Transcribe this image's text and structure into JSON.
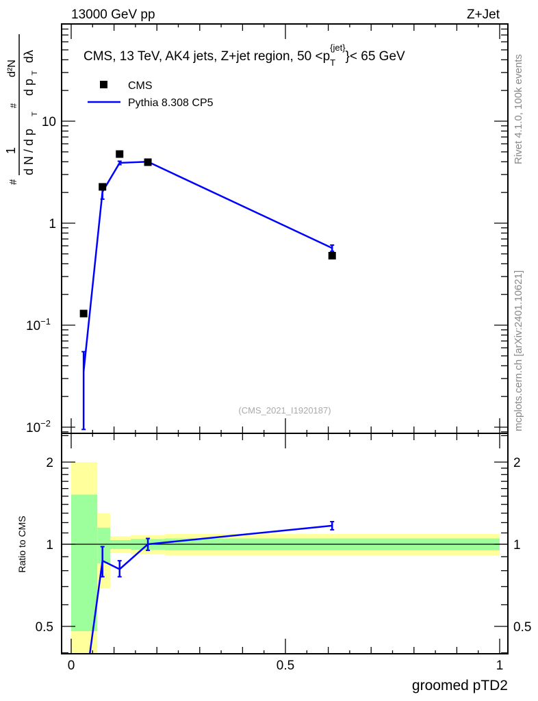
{
  "header": {
    "left": "13000 GeV pp",
    "right": "Z+Jet"
  },
  "side": {
    "rivet": "Rivet 4.1.0,  100k events",
    "mcplots": "mcplots.cern.ch [arXiv:2401.10621]"
  },
  "colors": {
    "data": "#000000",
    "mc": "#0000ff",
    "band_inner": "#9cff9c",
    "band_outer": "#ffff9c"
  },
  "chart_data": [
    {
      "type": "scatter",
      "title": "CMS, 13 TeV, AK4 jets, Z+jet region, 50 <p_T^{jet}< 65 GeV",
      "title_main": "CMS, 13 TeV, AK4 jets, Z+jet region, 50 <p",
      "title_sub": "T",
      "title_sup": "{jet}",
      "title_end": "}< 65 GeV",
      "analysis_id": "(CMS_2021_I1920187)",
      "ylabel": "1/N dN/dλ",
      "ylabel_parts": {
        "num1": "1",
        "den1": "d N / d p",
        "num2": "d²N",
        "den2": "d p",
        "sub": "T",
        "lambda": "dλ",
        "hash": "#"
      },
      "yscale": "log",
      "ylim": [
        0.0087,
        89
      ],
      "xlim": [
        -0.02,
        1.02
      ],
      "yticks": [
        {
          "v": 10,
          "label": "10"
        },
        {
          "v": 1,
          "label": "1"
        },
        {
          "v": 0.1,
          "label": "10",
          "exp": "−1"
        },
        {
          "v": 0.01,
          "label": "10",
          "exp": "−2"
        }
      ],
      "legend": {
        "placement": "top-left",
        "entries": [
          "CMS",
          "Pythia 8.308 CP5"
        ]
      },
      "bins": [
        0,
        0.061,
        0.091,
        0.139,
        0.219,
        1.0
      ],
      "series": [
        {
          "name": "CMS",
          "x": [
            0.029,
            0.073,
            0.113,
            0.179,
            0.609
          ],
          "y": [
            0.13,
            2.27,
            4.76,
            3.96,
            0.48
          ]
        },
        {
          "name": "Pythia 8.308 CP5",
          "x": [
            0.029,
            0.073,
            0.113,
            0.179,
            0.609
          ],
          "y": [
            0.035,
            2.03,
            3.9,
            4.0,
            0.57
          ],
          "yerr_lo": [
            0.0095,
            1.72,
            3.75,
            3.85,
            0.53
          ],
          "yerr_hi": [
            0.055,
            2.3,
            4.05,
            4.15,
            0.61
          ]
        }
      ]
    },
    {
      "type": "line",
      "ylabel": "Ratio to CMS",
      "xlabel": "groomed pTD2",
      "yscale": "log",
      "ylim": [
        0.397,
        2.55
      ],
      "xlim": [
        -0.02,
        1.02
      ],
      "yticks": [
        {
          "v": 2,
          "label": "2"
        },
        {
          "v": 1,
          "label": "1"
        },
        {
          "v": 0.5,
          "label": "0.5"
        }
      ],
      "xticks": [
        {
          "v": 0,
          "label": "0"
        },
        {
          "v": 0.5,
          "label": "0.5"
        },
        {
          "v": 1,
          "label": "1"
        }
      ],
      "bands": {
        "bins": [
          0,
          0.061,
          0.091,
          0.139,
          0.219,
          1.0
        ],
        "outer_hi": [
          2.0,
          1.3,
          1.07,
          1.08,
          1.09
        ],
        "outer_lo": [
          0.3,
          0.69,
          0.93,
          0.92,
          0.91
        ],
        "inner_hi": [
          1.52,
          1.15,
          1.035,
          1.045,
          1.05
        ],
        "inner_lo": [
          0.48,
          0.85,
          0.96,
          0.955,
          0.95
        ]
      },
      "series": [
        {
          "name": "Pythia 8.308 CP5",
          "x": [
            0.029,
            0.073,
            0.113,
            0.179,
            0.609
          ],
          "y": [
            0.27,
            0.87,
            0.81,
            1.0,
            1.17
          ],
          "yerr_lo": [
            0.07,
            0.76,
            0.76,
            0.95,
            1.13
          ],
          "yerr_hi": [
            0.42,
            0.98,
            0.87,
            1.05,
            1.21
          ]
        }
      ]
    }
  ]
}
